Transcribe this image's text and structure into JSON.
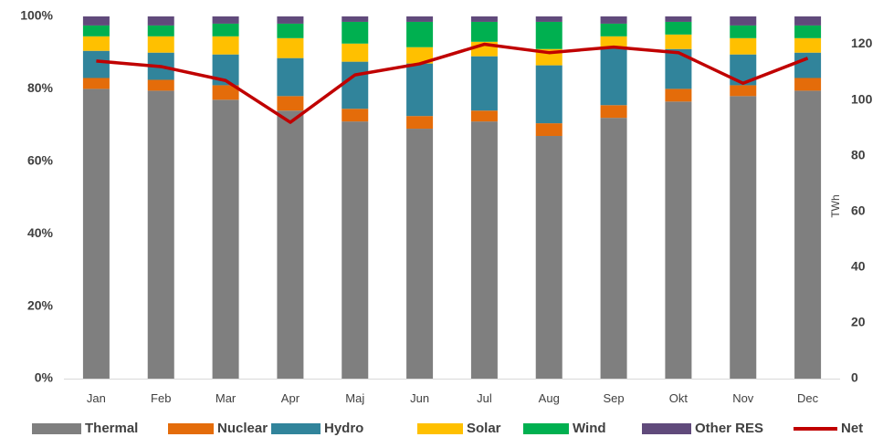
{
  "chart_data": {
    "type": "bar",
    "stacked": true,
    "categories": [
      "Jan",
      "Feb",
      "Mar",
      "Apr",
      "Maj",
      "Jun",
      "Jul",
      "Aug",
      "Sep",
      "Okt",
      "Nov",
      "Dec"
    ],
    "series": [
      {
        "name": "Thermal",
        "color": "#7f7f7f",
        "values": [
          80,
          79.5,
          77,
          74,
          71,
          69,
          71,
          67,
          72,
          76.5,
          78,
          79.5
        ]
      },
      {
        "name": "Nuclear",
        "color": "#e46c0a",
        "values": [
          3,
          3,
          4,
          4,
          3.5,
          3.5,
          3,
          3.5,
          3.5,
          3.5,
          3,
          3.5
        ]
      },
      {
        "name": "Hydro",
        "color": "#31849b",
        "values": [
          7.5,
          7.5,
          8.5,
          10.5,
          13,
          14.5,
          15,
          16,
          16,
          11,
          8.5,
          7
        ]
      },
      {
        "name": "Solar",
        "color": "#ffc000",
        "values": [
          4,
          4.5,
          5,
          5.5,
          5,
          4.5,
          4,
          4.5,
          3,
          4,
          4.5,
          4
        ]
      },
      {
        "name": "Wind",
        "color": "#00b050",
        "values": [
          3,
          3,
          3.5,
          4,
          6,
          7,
          5.5,
          7.5,
          3.5,
          3.5,
          3.5,
          3.5
        ]
      },
      {
        "name": "Other RES",
        "color": "#604a7b",
        "values": [
          2.5,
          2.5,
          2,
          2,
          1.5,
          1.5,
          1.5,
          1.5,
          2,
          1.5,
          2.5,
          2.5
        ]
      }
    ],
    "line_series": {
      "name": "Net",
      "color": "#c00000",
      "axis": "right",
      "values": [
        114,
        112,
        107,
        92,
        109,
        113,
        120,
        117,
        119,
        117,
        106,
        115
      ]
    },
    "y_left": {
      "ylim": [
        0,
        100
      ],
      "ticks": [
        "0%",
        "20%",
        "40%",
        "60%",
        "80%",
        "100%"
      ]
    },
    "y_right": {
      "ylim": [
        0,
        130
      ],
      "ticks": [
        "0",
        "20",
        "40",
        "60",
        "80",
        "100",
        "120"
      ],
      "label": "TWh"
    },
    "legend_position": "bottom"
  }
}
